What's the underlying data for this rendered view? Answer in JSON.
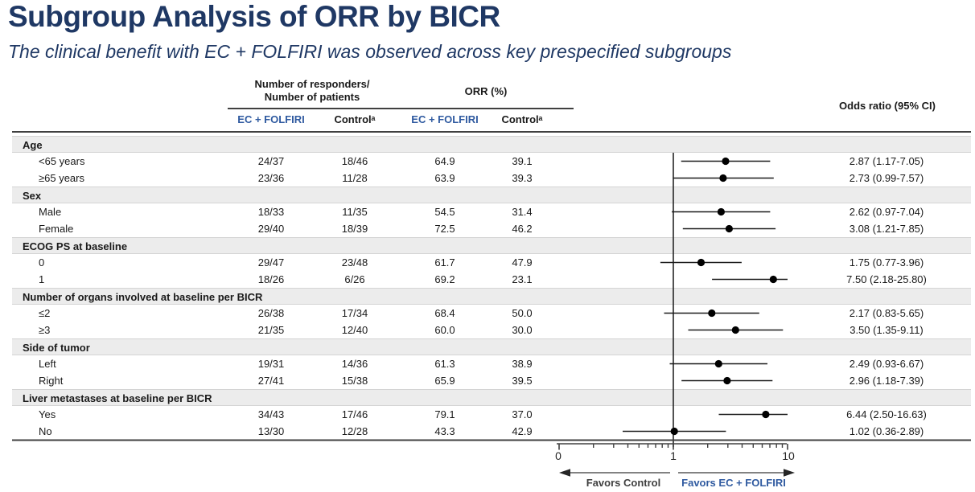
{
  "slide": {
    "title": "Subgroup Analysis of ORR by BICR",
    "subtitle": "The clinical benefit with EC + FOLFIRI was observed across key prespecified subgroups"
  },
  "table": {
    "header": {
      "responders": "Number of responders/\nNumber of patients",
      "orr": "ORR (%)",
      "odds_ratio": "Odds ratio (95% CI)"
    },
    "subheaders": [
      "EC + FOLFIRI",
      "Controlᵃ",
      "EC + FOLFIRI",
      "Controlᵃ"
    ]
  },
  "colors": {
    "navy": "#1f3864",
    "accent_blue": "#2f5aa0",
    "section_band": "#ececec",
    "line": "#404040"
  },
  "chart_data": {
    "type": "forest",
    "x_scale": "log",
    "x_range": [
      0.1,
      10
    ],
    "reference_value": 1,
    "axis": {
      "tick_labels": [
        "0",
        "1",
        "10"
      ]
    },
    "favors_left": "Favors Control",
    "favors_right": "Favors EC + FOLFIRI",
    "groups": [
      {
        "label": "Age",
        "rows": [
          {
            "label": "<65 years",
            "n_ec": "24/37",
            "n_ctrl": "18/46",
            "orr_ec": "64.9",
            "orr_ctrl": "39.1",
            "or": 2.87,
            "lo": 1.17,
            "hi": 7.05,
            "or_text": "2.87 (1.17-7.05)"
          },
          {
            "label": "≥65 years",
            "n_ec": "23/36",
            "n_ctrl": "11/28",
            "orr_ec": "63.9",
            "orr_ctrl": "39.3",
            "or": 2.73,
            "lo": 0.99,
            "hi": 7.57,
            "or_text": "2.73 (0.99-7.57)"
          }
        ]
      },
      {
        "label": "Sex",
        "rows": [
          {
            "label": "Male",
            "n_ec": "18/33",
            "n_ctrl": "11/35",
            "orr_ec": "54.5",
            "orr_ctrl": "31.4",
            "or": 2.62,
            "lo": 0.97,
            "hi": 7.04,
            "or_text": "2.62 (0.97-7.04)"
          },
          {
            "label": "Female",
            "n_ec": "29/40",
            "n_ctrl": "18/39",
            "orr_ec": "72.5",
            "orr_ctrl": "46.2",
            "or": 3.08,
            "lo": 1.21,
            "hi": 7.85,
            "or_text": "3.08 (1.21-7.85)"
          }
        ]
      },
      {
        "label": "ECOG PS at baseline",
        "rows": [
          {
            "label": "0",
            "n_ec": "29/47",
            "n_ctrl": "23/48",
            "orr_ec": "61.7",
            "orr_ctrl": "47.9",
            "or": 1.75,
            "lo": 0.77,
            "hi": 3.96,
            "or_text": "1.75 (0.77-3.96)"
          },
          {
            "label": "1",
            "n_ec": "18/26",
            "n_ctrl": "6/26",
            "orr_ec": "69.2",
            "orr_ctrl": "23.1",
            "or": 7.5,
            "lo": 2.18,
            "hi": 25.8,
            "or_text": "7.50 (2.18-25.80)"
          }
        ]
      },
      {
        "label": "Number of organs involved at baseline per BICR",
        "rows": [
          {
            "label": "≤2",
            "n_ec": "26/38",
            "n_ctrl": "17/34",
            "orr_ec": "68.4",
            "orr_ctrl": "50.0",
            "or": 2.17,
            "lo": 0.83,
            "hi": 5.65,
            "or_text": "2.17 (0.83-5.65)"
          },
          {
            "label": "≥3",
            "n_ec": "21/35",
            "n_ctrl": "12/40",
            "orr_ec": "60.0",
            "orr_ctrl": "30.0",
            "or": 3.5,
            "lo": 1.35,
            "hi": 9.11,
            "or_text": "3.50 (1.35-9.11)"
          }
        ]
      },
      {
        "label": "Side of tumor",
        "rows": [
          {
            "label": "Left",
            "n_ec": "19/31",
            "n_ctrl": "14/36",
            "orr_ec": "61.3",
            "orr_ctrl": "38.9",
            "or": 2.49,
            "lo": 0.93,
            "hi": 6.67,
            "or_text": "2.49 (0.93-6.67)"
          },
          {
            "label": "Right",
            "n_ec": "27/41",
            "n_ctrl": "15/38",
            "orr_ec": "65.9",
            "orr_ctrl": "39.5",
            "or": 2.96,
            "lo": 1.18,
            "hi": 7.39,
            "or_text": "2.96 (1.18-7.39)"
          }
        ]
      },
      {
        "label": "Liver metastases at baseline per BICR",
        "rows": [
          {
            "label": "Yes",
            "n_ec": "34/43",
            "n_ctrl": "17/46",
            "orr_ec": "79.1",
            "orr_ctrl": "37.0",
            "or": 6.44,
            "lo": 2.5,
            "hi": 16.63,
            "or_text": "6.44 (2.50-16.63)"
          },
          {
            "label": "No",
            "n_ec": "13/30",
            "n_ctrl": "12/28",
            "orr_ec": "43.3",
            "orr_ctrl": "42.9",
            "or": 1.02,
            "lo": 0.36,
            "hi": 2.89,
            "or_text": "1.02 (0.36-2.89)"
          }
        ]
      }
    ]
  }
}
